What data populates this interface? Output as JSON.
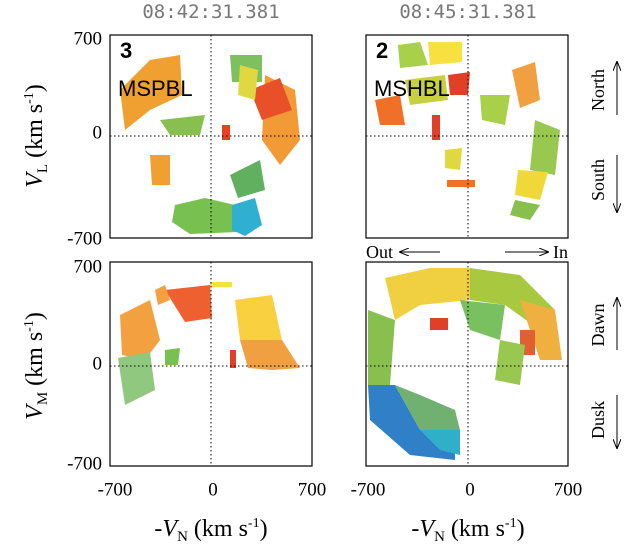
{
  "times": [
    "08:42:31.381",
    "08:45:31.381"
  ],
  "panels": [
    {
      "number": "3",
      "region": "MSPBL"
    },
    {
      "number": "2",
      "region": "MSHBL"
    }
  ],
  "y_axes": [
    {
      "symbol": "V",
      "sub": "L",
      "unit": " (km s",
      "sup": "-1",
      "close": ")"
    },
    {
      "symbol": "V",
      "sub": "M",
      "unit": " (km s",
      "sup": "-1",
      "close": ")"
    }
  ],
  "x_axis": {
    "symbol": "-V",
    "sub": "N",
    "unit": " (km s",
    "sup": "-1",
    "close": ")"
  },
  "y_ticks": [
    "700",
    "0",
    "-700"
  ],
  "x_ticks": [
    "-700",
    "0",
    "700"
  ],
  "direction_labels": {
    "top": [
      "North",
      "South"
    ],
    "bottom": [
      "Dawn",
      "Dusk"
    ],
    "out": "Out",
    "in": "In"
  }
}
